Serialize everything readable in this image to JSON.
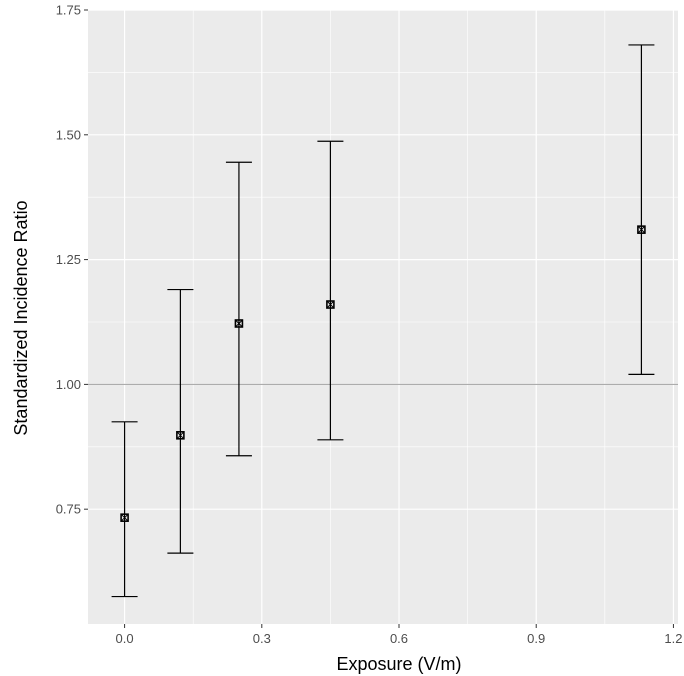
{
  "chart_data": {
    "type": "scatter",
    "title": "",
    "xlabel": "Exposure (V/m)",
    "ylabel": "Standardized Incidence Ratio",
    "xlim": [
      -0.08,
      1.21
    ],
    "ylim": [
      0.52,
      1.75
    ],
    "x_ticks": [
      0.0,
      0.3,
      0.6,
      0.9,
      1.2
    ],
    "x_tick_labels": [
      "0.0",
      "0.3",
      "0.6",
      "0.9",
      "1.2"
    ],
    "y_ticks": [
      0.75,
      1.0,
      1.25,
      1.5,
      1.75
    ],
    "y_tick_labels": [
      "0.75",
      "1.00",
      "1.25",
      "1.50",
      "1.75"
    ],
    "reference_line_y": 1.0,
    "grid": true,
    "points": [
      {
        "x": 0.0,
        "y": 0.733,
        "lower": 0.575,
        "upper": 0.925
      },
      {
        "x": 0.122,
        "y": 0.898,
        "lower": 0.662,
        "upper": 1.19
      },
      {
        "x": 0.25,
        "y": 1.122,
        "lower": 0.857,
        "upper": 1.445
      },
      {
        "x": 0.45,
        "y": 1.16,
        "lower": 0.889,
        "upper": 1.487
      },
      {
        "x": 1.13,
        "y": 1.31,
        "lower": 1.02,
        "upper": 1.68
      }
    ],
    "colors": {
      "panel": "#ebebeb",
      "grid_major": "#ffffff",
      "reference_line": "#a0a0a0",
      "marks": "#000000"
    }
  }
}
